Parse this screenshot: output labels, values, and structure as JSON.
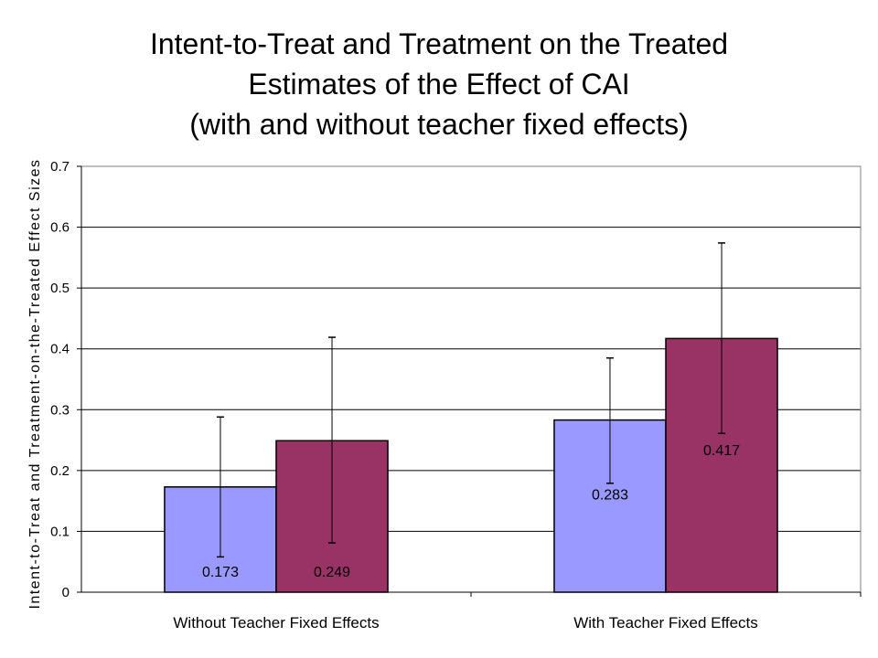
{
  "chart_data": {
    "type": "bar",
    "title_lines": [
      "Intent-to-Treat and Treatment on the Treated",
      "Estimates of the Effect of CAI",
      "(with and without teacher fixed effects)"
    ],
    "xlabel": "",
    "ylabel": "Intent-to-Treat and Treatment-on-the-Treated Effect Sizes",
    "categories": [
      "Without Teacher Fixed Effects",
      "With Teacher Fixed Effects"
    ],
    "ylim": [
      0,
      0.7
    ],
    "yticks": [
      "0",
      "0.1",
      "0.2",
      "0.3",
      "0.4",
      "0.5",
      "0.6",
      "0.7"
    ],
    "grid": true,
    "legend": "none",
    "series": [
      {
        "color": "#9999ff",
        "values": [
          0.173,
          0.283
        ],
        "labels": [
          "0.173",
          "0.283"
        ],
        "error_low": [
          0.058,
          0.179
        ],
        "error_high": [
          0.288,
          0.385
        ]
      },
      {
        "color": "#993366",
        "values": [
          0.249,
          0.417
        ],
        "labels": [
          "0.249",
          "0.417"
        ],
        "error_low": [
          0.081,
          0.261
        ],
        "error_high": [
          0.419,
          0.574
        ]
      }
    ]
  }
}
